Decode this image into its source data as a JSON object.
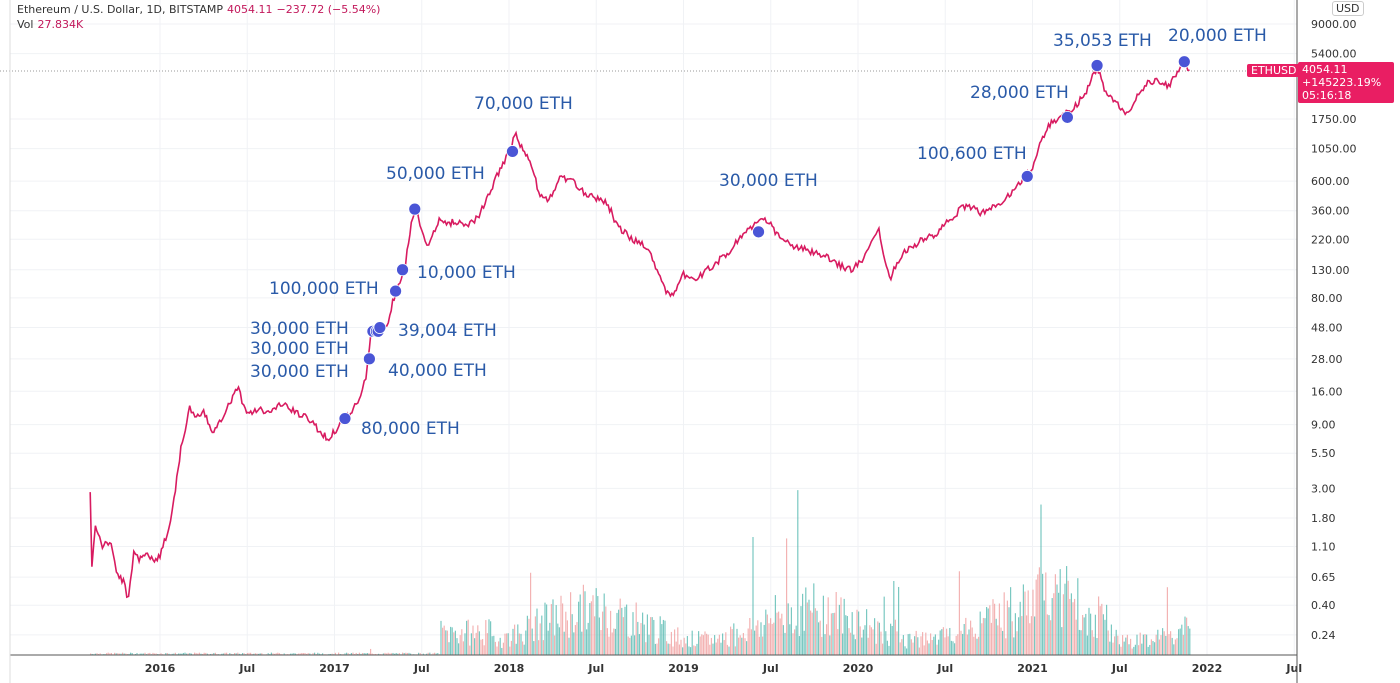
{
  "header": {
    "title": "Ethereum / U.S. Dollar, 1D, BITSTAMP",
    "price": "4054.11",
    "change": "−237.72 (−5.54%)",
    "vol_label": "Vol",
    "vol_value": "27.834K"
  },
  "price_axis": {
    "currency": "USD",
    "symbol": "ETHUSD",
    "last_price": "4054.11",
    "last_change": "+145223.19%",
    "countdown": "05:16:18"
  },
  "colors": {
    "line": "#d81b60",
    "dot": "#4a55d6",
    "label": "#2a5aa8",
    "vol_up": "#4db6ac",
    "vol_down": "#ef9a9a"
  },
  "chart_data": {
    "type": "line",
    "title": "Ethereum / U.S. Dollar, 1D, BITSTAMP",
    "yscale": "log",
    "ylim": [
      0.2,
      12000
    ],
    "xlim": [
      2015.4,
      2022.6
    ],
    "y_ticks": [
      9000,
      5400,
      1750,
      1050,
      600,
      360,
      220,
      130,
      80,
      48,
      28,
      16,
      9,
      5.5,
      3,
      1.8,
      1.1,
      0.65,
      0.4,
      0.24
    ],
    "y_tick_labels": [
      "9000.00",
      "5400.00",
      "1750.00",
      "1050.00",
      "600.00",
      "360.00",
      "220.00",
      "130.00",
      "80.00",
      "48.00",
      "28.00",
      "16.00",
      "9.00",
      "5.50",
      "3.00",
      "1.80",
      "1.10",
      "0.65",
      "0.40",
      "0.24"
    ],
    "x_ticks": [
      2016,
      2016.5,
      2017,
      2017.5,
      2018,
      2018.5,
      2019,
      2019.5,
      2020,
      2020.5,
      2021,
      2021.5,
      2022,
      2022.5
    ],
    "x_tick_labels": [
      "2016",
      "Jul",
      "2017",
      "Jul",
      "2018",
      "Jul",
      "2019",
      "Jul",
      "2020",
      "Jul",
      "2021",
      "Jul",
      "2022",
      "Jul"
    ],
    "series": [
      {
        "name": "ETHUSD",
        "points": [
          [
            2015.6,
            2.8
          ],
          [
            2015.61,
            0.75
          ],
          [
            2015.63,
            1.6
          ],
          [
            2015.67,
            1.1
          ],
          [
            2015.72,
            1.2
          ],
          [
            2015.75,
            0.7
          ],
          [
            2015.79,
            0.6
          ],
          [
            2015.82,
            0.44
          ],
          [
            2015.85,
            1.0
          ],
          [
            2015.88,
            0.9
          ],
          [
            2015.92,
            1.0
          ],
          [
            2015.96,
            0.85
          ],
          [
            2016.0,
            0.95
          ],
          [
            2016.05,
            1.5
          ],
          [
            2016.08,
            2.5
          ],
          [
            2016.12,
            6
          ],
          [
            2016.17,
            12
          ],
          [
            2016.2,
            10
          ],
          [
            2016.25,
            11
          ],
          [
            2016.3,
            8
          ],
          [
            2016.35,
            10
          ],
          [
            2016.4,
            13
          ],
          [
            2016.45,
            18
          ],
          [
            2016.48,
            12
          ],
          [
            2016.52,
            11
          ],
          [
            2016.56,
            12
          ],
          [
            2016.62,
            11
          ],
          [
            2016.7,
            13
          ],
          [
            2016.78,
            11
          ],
          [
            2016.85,
            10
          ],
          [
            2016.92,
            8
          ],
          [
            2016.96,
            7
          ],
          [
            2017.0,
            8
          ],
          [
            2017.05,
            10
          ],
          [
            2017.1,
            11
          ],
          [
            2017.15,
            15
          ],
          [
            2017.18,
            20
          ],
          [
            2017.21,
            45
          ],
          [
            2017.25,
            48
          ],
          [
            2017.3,
            50
          ],
          [
            2017.35,
            90
          ],
          [
            2017.4,
            130
          ],
          [
            2017.44,
            280
          ],
          [
            2017.47,
            380
          ],
          [
            2017.5,
            260
          ],
          [
            2017.53,
            190
          ],
          [
            2017.56,
            230
          ],
          [
            2017.6,
            300
          ],
          [
            2017.65,
            290
          ],
          [
            2017.7,
            300
          ],
          [
            2017.75,
            280
          ],
          [
            2017.82,
            320
          ],
          [
            2017.88,
            450
          ],
          [
            2017.94,
            700
          ],
          [
            2018.0,
            1000
          ],
          [
            2018.04,
            1350
          ],
          [
            2018.08,
            1000
          ],
          [
            2018.12,
            850
          ],
          [
            2018.17,
            500
          ],
          [
            2018.22,
            420
          ],
          [
            2018.3,
            650
          ],
          [
            2018.36,
            600
          ],
          [
            2018.42,
            500
          ],
          [
            2018.5,
            450
          ],
          [
            2018.56,
            420
          ],
          [
            2018.62,
            280
          ],
          [
            2018.7,
            220
          ],
          [
            2018.78,
            200
          ],
          [
            2018.84,
            140
          ],
          [
            2018.9,
            90
          ],
          [
            2018.95,
            85
          ],
          [
            2019.0,
            120
          ],
          [
            2019.08,
            110
          ],
          [
            2019.15,
            135
          ],
          [
            2019.25,
            170
          ],
          [
            2019.35,
            250
          ],
          [
            2019.45,
            310
          ],
          [
            2019.5,
            280
          ],
          [
            2019.56,
            220
          ],
          [
            2019.65,
            190
          ],
          [
            2019.72,
            180
          ],
          [
            2019.82,
            160
          ],
          [
            2019.9,
            140
          ],
          [
            2019.97,
            130
          ],
          [
            2020.05,
            170
          ],
          [
            2020.12,
            260
          ],
          [
            2020.18,
            110
          ],
          [
            2020.25,
            170
          ],
          [
            2020.35,
            210
          ],
          [
            2020.45,
            240
          ],
          [
            2020.55,
            330
          ],
          [
            2020.62,
            400
          ],
          [
            2020.7,
            350
          ],
          [
            2020.78,
            380
          ],
          [
            2020.85,
            450
          ],
          [
            2020.92,
            580
          ],
          [
            2021.0,
            740
          ],
          [
            2021.05,
            1200
          ],
          [
            2021.1,
            1600
          ],
          [
            2021.15,
            1800
          ],
          [
            2021.22,
            2000
          ],
          [
            2021.3,
            2700
          ],
          [
            2021.37,
            4300
          ],
          [
            2021.42,
            2700
          ],
          [
            2021.48,
            2300
          ],
          [
            2021.54,
            1900
          ],
          [
            2021.6,
            2600
          ],
          [
            2021.66,
            3200
          ],
          [
            2021.72,
            3400
          ],
          [
            2021.78,
            3000
          ],
          [
            2021.83,
            4000
          ],
          [
            2021.87,
            4700
          ],
          [
            2021.9,
            4054
          ]
        ]
      }
    ],
    "annotations": [
      {
        "label": "80,000 ETH",
        "x": 2017.06,
        "y": 10
      },
      {
        "label": "40,000 ETH",
        "x": 2017.2,
        "y": 28
      },
      {
        "label": "30,000 ETH",
        "x": 2017.22,
        "y": 45
      },
      {
        "label": "30,000 ETH",
        "x": 2017.24,
        "y": 45
      },
      {
        "label": "30,000 ETH",
        "x": 2017.25,
        "y": 45
      },
      {
        "label": "39,004 ETH",
        "x": 2017.26,
        "y": 48
      },
      {
        "label": "100,000 ETH",
        "x": 2017.35,
        "y": 90
      },
      {
        "label": "10,000 ETH",
        "x": 2017.39,
        "y": 130
      },
      {
        "label": "50,000 ETH",
        "x": 2017.46,
        "y": 370
      },
      {
        "label": "70,000 ETH",
        "x": 2018.02,
        "y": 1000
      },
      {
        "label": "30,000 ETH",
        "x": 2019.43,
        "y": 250
      },
      {
        "label": "100,600 ETH",
        "x": 2020.97,
        "y": 650
      },
      {
        "label": "28,000 ETH",
        "x": 2021.2,
        "y": 1800
      },
      {
        "label": "35,053 ETH",
        "x": 2021.37,
        "y": 4400
      },
      {
        "label": "20,000 ETH",
        "x": 2021.87,
        "y": 4700
      }
    ]
  }
}
